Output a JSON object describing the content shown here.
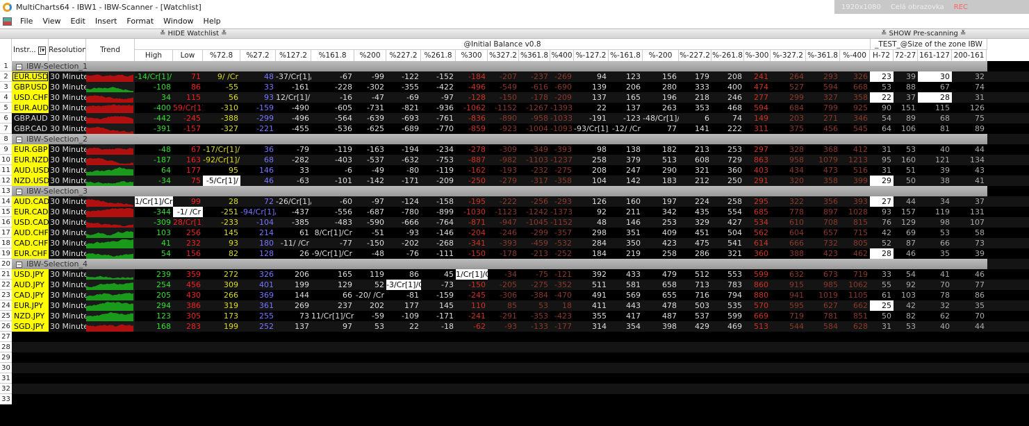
{
  "window": {
    "title": "MultiCharts64 - IBW1 - IBW-Scanner - [Watchlist]"
  },
  "recorder": {
    "resolution": "1920x1080",
    "mode": "Celá obrazovka",
    "rec": "REC"
  },
  "menu": [
    "File",
    "View",
    "Edit",
    "Insert",
    "Format",
    "Window",
    "Help"
  ],
  "toolbar": {
    "hide_watchlist": "≚ HIDE Watchlist ≚",
    "show_prescanning": "≚ SHOW Pre-scanning ≚"
  },
  "header": {
    "instr": "Instr...",
    "instr_filter": "I▾",
    "resolution": "Resolution",
    "trend": "Trend",
    "group1": "@Initial Balance v0.8",
    "group2": "_TEST_@Size of the zone IBW",
    "columns": [
      "High",
      "Low",
      "%72.8",
      "%27.2",
      "%127.2",
      "%161.8",
      "%200",
      "%227.2",
      "%261.8",
      "%300",
      "%327.2",
      "%361.8",
      "%400",
      "%-127.2",
      "%-161.8",
      "%-200",
      "%-227.2",
      "%-261.8",
      "%-300",
      "%-327.2",
      "%-361.8",
      "%-400",
      "H-72",
      "72-27",
      "161-127",
      "200-161"
    ]
  },
  "colors": {
    "high": "#33dd33",
    "low": "#ee2222",
    "p728": "#dddd22",
    "p272": "#7777ff",
    "neutral": "#dddddd",
    "level300": "#cc3322",
    "far": "#8a3a2a",
    "size": "#aaaaaa",
    "trend_up": "#1a9a1a",
    "trend_down": "#b01010"
  },
  "rows": [
    {
      "n": "1",
      "group": "IBW-Selection_1"
    },
    {
      "n": "2",
      "instr": "EUR.USD",
      "yellow": true,
      "selected": true,
      "res": "30 Minutes",
      "trend": "down",
      "hl": [
        22,
        24
      ],
      "v": [
        "-14/Cr[1]/",
        "71",
        "9/ /Cr",
        "48",
        "-37/Cr[1]/",
        "-67",
        "-99",
        "-122",
        "-152",
        "-184",
        "-207",
        "-237",
        "-269",
        "94",
        "123",
        "156",
        "179",
        "208",
        "241",
        "264",
        "293",
        "326",
        "23",
        "39",
        "30",
        "32"
      ]
    },
    {
      "n": "3",
      "instr": "GBP.USD",
      "yellow": true,
      "res": "30 Minutes",
      "trend": "up",
      "hl": [],
      "v": [
        "-108",
        "86",
        "-55",
        "33",
        "-161",
        "-228",
        "-302",
        "-355",
        "-422",
        "-496",
        "-549",
        "-616",
        "-690",
        "139",
        "206",
        "280",
        "333",
        "400",
        "474",
        "527",
        "594",
        "668",
        "53",
        "88",
        "67",
        "74"
      ]
    },
    {
      "n": "4",
      "instr": "USD.CHF",
      "yellow": true,
      "res": "30 Minutes",
      "trend": "down",
      "hl": [
        22,
        24
      ],
      "v": [
        "34",
        "115",
        "56",
        "93",
        "12/Cr[1]/",
        "-16",
        "-47",
        "-69",
        "-97",
        "-128",
        "-150",
        "-178",
        "-209",
        "137",
        "165",
        "196",
        "218",
        "246",
        "277",
        "299",
        "327",
        "358",
        "22",
        "37",
        "28",
        "31"
      ]
    },
    {
      "n": "5",
      "instr": "EUR.AUD",
      "yellow": true,
      "res": "30 Minutes",
      "trend": "down",
      "hl": [],
      "v": [
        "-400",
        "59/Cr[1]/",
        "-310",
        "-159",
        "-490",
        "-605",
        "-731",
        "-821",
        "-936",
        "-1062",
        "-1152",
        "-1267",
        "-1393",
        "22",
        "137",
        "263",
        "353",
        "468",
        "594",
        "684",
        "799",
        "925",
        "90",
        "151",
        "115",
        "126"
      ]
    },
    {
      "n": "6",
      "instr": "GBP.AUD",
      "yellow": false,
      "res": "30 Minutes",
      "trend": "down",
      "hl": [],
      "v": [
        "-442",
        "-245",
        "-388",
        "-299",
        "-496",
        "-564",
        "-639",
        "-693",
        "-761",
        "-836",
        "-890",
        "-958",
        "-1033",
        "-191",
        "-123",
        "-48/Cr[1]/",
        "6",
        "74",
        "149",
        "203",
        "271",
        "346",
        "54",
        "89",
        "68",
        "75"
      ]
    },
    {
      "n": "7",
      "instr": "GBP.CAD",
      "yellow": false,
      "res": "30 Minutes",
      "trend": "down",
      "hl": [],
      "v": [
        "-391",
        "-157",
        "-327",
        "-221",
        "-455",
        "-536",
        "-625",
        "-689",
        "-770",
        "-859",
        "-923",
        "-1004",
        "-1093",
        "-93/Cr[1]/",
        "-12/ /Cr",
        "77",
        "141",
        "222",
        "311",
        "375",
        "456",
        "545",
        "64",
        "106",
        "81",
        "89"
      ]
    },
    {
      "n": "8",
      "group": "IBW-Selection_2"
    },
    {
      "n": "9",
      "instr": "EUR.GBP",
      "yellow": true,
      "res": "30 Minutes",
      "trend": "down",
      "hl": [],
      "v": [
        "-48",
        "67",
        "-17/Cr[1]/",
        "36",
        "-79",
        "-119",
        "-163",
        "-194",
        "-234",
        "-278",
        "-309",
        "-349",
        "-393",
        "98",
        "138",
        "182",
        "213",
        "253",
        "297",
        "328",
        "368",
        "412",
        "31",
        "53",
        "40",
        "44"
      ]
    },
    {
      "n": "10",
      "instr": "EUR.NZD",
      "yellow": true,
      "res": "30 Minutes",
      "trend": "down",
      "hl": [],
      "v": [
        "-187",
        "163",
        "-92/Cr[1]/",
        "68",
        "-282",
        "-403",
        "-537",
        "-632",
        "-753",
        "-887",
        "-982",
        "-1103",
        "-1237",
        "258",
        "379",
        "513",
        "608",
        "729",
        "863",
        "958",
        "1079",
        "1213",
        "95",
        "160",
        "121",
        "134"
      ]
    },
    {
      "n": "11",
      "instr": "AUD.USD",
      "yellow": true,
      "res": "30 Minutes",
      "trend": "up",
      "hl": [],
      "v": [
        "64",
        "177",
        "95",
        "146",
        "33",
        "-6",
        "-49",
        "-80",
        "-119",
        "-162",
        "-193",
        "-232",
        "-275",
        "208",
        "247",
        "290",
        "321",
        "360",
        "403",
        "434",
        "473",
        "516",
        "31",
        "51",
        "39",
        "43"
      ]
    },
    {
      "n": "12",
      "instr": "NZD.USD",
      "yellow": true,
      "res": "30 Minutes",
      "trend": "up",
      "hl": [
        2,
        22
      ],
      "v": [
        "-34",
        "75",
        "-5/Cr[1]/",
        "46",
        "-63",
        "-101",
        "-142",
        "-171",
        "-209",
        "-250",
        "-279",
        "-317",
        "-358",
        "104",
        "142",
        "183",
        "212",
        "250",
        "291",
        "320",
        "358",
        "399",
        "29",
        "50",
        "38",
        "41"
      ]
    },
    {
      "n": "13",
      "group": "IBW-Selection_3"
    },
    {
      "n": "14",
      "instr": "AUD.CAD",
      "yellow": true,
      "res": "30 Minutes",
      "trend": "down",
      "hl": [
        0,
        22
      ],
      "v": [
        "1/Cr[1]/Cr",
        "99",
        "28",
        "72",
        "-26/Cr[1]/",
        "-60",
        "-97",
        "-124",
        "-158",
        "-195",
        "-222",
        "-256",
        "-293",
        "126",
        "160",
        "197",
        "224",
        "258",
        "295",
        "322",
        "356",
        "393",
        "27",
        "44",
        "34",
        "37"
      ]
    },
    {
      "n": "15",
      "instr": "EUR.CAD",
      "yellow": true,
      "res": "30 Minutes",
      "trend": "down",
      "hl": [
        1
      ],
      "v": [
        "-344",
        "-1/ /Cr",
        "-251",
        "-94/Cr[1]/",
        "-437",
        "-556",
        "-687",
        "-780",
        "-899",
        "-1030",
        "-1123",
        "-1242",
        "-1373",
        "92",
        "211",
        "342",
        "435",
        "554",
        "685",
        "778",
        "897",
        "1028",
        "93",
        "157",
        "119",
        "131"
      ]
    },
    {
      "n": "16",
      "instr": "USD.CAD",
      "yellow": true,
      "res": "30 Minutes",
      "trend": "down",
      "hl": [],
      "v": [
        "-309",
        "28/Cr[1]/",
        "-233",
        "-104",
        "-385",
        "-483",
        "-590",
        "-666",
        "-764",
        "-871",
        "-947",
        "-1045",
        "-1152",
        "48",
        "146",
        "253",
        "329",
        "427",
        "534",
        "610",
        "708",
        "815",
        "76",
        "129",
        "98",
        "107"
      ]
    },
    {
      "n": "17",
      "instr": "AUD.CHF",
      "yellow": true,
      "res": "30 Minutes",
      "trend": "up",
      "hl": [],
      "v": [
        "103",
        "256",
        "145",
        "214",
        "61",
        "8/Cr[1]/Cr",
        "-51",
        "-93",
        "-146",
        "-204",
        "-246",
        "-299",
        "-357",
        "298",
        "351",
        "409",
        "451",
        "504",
        "562",
        "604",
        "657",
        "715",
        "42",
        "69",
        "53",
        "58"
      ]
    },
    {
      "n": "18",
      "instr": "CAD.CHF",
      "yellow": true,
      "res": "30 Minutes",
      "trend": "up",
      "hl": [],
      "v": [
        "41",
        "232",
        "93",
        "180",
        "-11/ /Cr",
        "-77",
        "-150",
        "-202",
        "-268",
        "-341",
        "-393",
        "-459",
        "-532",
        "284",
        "350",
        "423",
        "475",
        "541",
        "614",
        "666",
        "732",
        "805",
        "52",
        "87",
        "66",
        "73"
      ]
    },
    {
      "n": "19",
      "instr": "EUR.CHF",
      "yellow": true,
      "res": "30 Minutes",
      "trend": "up",
      "hl": [
        22
      ],
      "v": [
        "54",
        "156",
        "82",
        "128",
        "26",
        "-9/Cr[1]/Cr",
        "-48",
        "-76",
        "-111",
        "-150",
        "-178",
        "-213",
        "-252",
        "184",
        "219",
        "258",
        "286",
        "321",
        "360",
        "388",
        "423",
        "462",
        "28",
        "46",
        "35",
        "39"
      ]
    },
    {
      "n": "20",
      "group": "IBW-Selection_4"
    },
    {
      "n": "21",
      "instr": "USD.JPY",
      "yellow": true,
      "res": "30 Minutes",
      "trend": "up",
      "hl": [
        9
      ],
      "v": [
        "239",
        "359",
        "272",
        "326",
        "206",
        "165",
        "119",
        "86",
        "45",
        "1/Cr[1]/Cr",
        "-34",
        "-75",
        "-121",
        "392",
        "433",
        "479",
        "512",
        "553",
        "599",
        "632",
        "673",
        "719",
        "33",
        "54",
        "41",
        "46"
      ]
    },
    {
      "n": "22",
      "instr": "AUD.JPY",
      "yellow": true,
      "res": "30 Minutes",
      "trend": "up",
      "hl": [
        7
      ],
      "v": [
        "254",
        "456",
        "309",
        "401",
        "199",
        "129",
        "52",
        "-3/Cr[1]/Cr",
        "-73",
        "-150",
        "-205",
        "-275",
        "-352",
        "511",
        "581",
        "658",
        "713",
        "783",
        "860",
        "915",
        "985",
        "1062",
        "55",
        "92",
        "70",
        "77"
      ]
    },
    {
      "n": "23",
      "instr": "CAD.JPY",
      "yellow": true,
      "res": "30 Minutes",
      "trend": "up",
      "hl": [],
      "v": [
        "205",
        "430",
        "266",
        "369",
        "144",
        "66",
        "-20/ /Cr",
        "-81",
        "-159",
        "-245",
        "-306",
        "-384",
        "-470",
        "491",
        "569",
        "655",
        "716",
        "794",
        "880",
        "941",
        "1019",
        "1105",
        "61",
        "103",
        "78",
        "86"
      ]
    },
    {
      "n": "24",
      "instr": "EUR.JPY",
      "yellow": true,
      "res": "30 Minutes",
      "trend": "up",
      "hl": [
        22
      ],
      "v": [
        "294",
        "386",
        "319",
        "361",
        "269",
        "237",
        "202",
        "177",
        "145",
        "110",
        "85",
        "53",
        "18",
        "411",
        "443",
        "478",
        "503",
        "535",
        "570",
        "595",
        "627",
        "662",
        "25",
        "42",
        "32",
        "35"
      ]
    },
    {
      "n": "25",
      "instr": "NZD.JPY",
      "yellow": true,
      "res": "30 Minutes",
      "trend": "up",
      "hl": [],
      "v": [
        "123",
        "305",
        "173",
        "255",
        "73",
        "11/Cr[1]/Cr",
        "-59",
        "-109",
        "-171",
        "-241",
        "-291",
        "-353",
        "-423",
        "355",
        "417",
        "487",
        "537",
        "599",
        "669",
        "719",
        "781",
        "851",
        "50",
        "82",
        "62",
        "70"
      ]
    },
    {
      "n": "26",
      "instr": "SGD.JPY",
      "yellow": true,
      "res": "30 Minutes",
      "trend": "down",
      "hl": [],
      "v": [
        "168",
        "283",
        "199",
        "252",
        "137",
        "97",
        "53",
        "22",
        "-18",
        "-62",
        "-93",
        "-133",
        "-177",
        "314",
        "354",
        "398",
        "429",
        "469",
        "513",
        "544",
        "584",
        "628",
        "31",
        "53",
        "40",
        "44"
      ]
    },
    {
      "n": "27"
    },
    {
      "n": "28"
    },
    {
      "n": "29"
    },
    {
      "n": "30"
    },
    {
      "n": "31"
    },
    {
      "n": "32"
    },
    {
      "n": "33"
    }
  ]
}
